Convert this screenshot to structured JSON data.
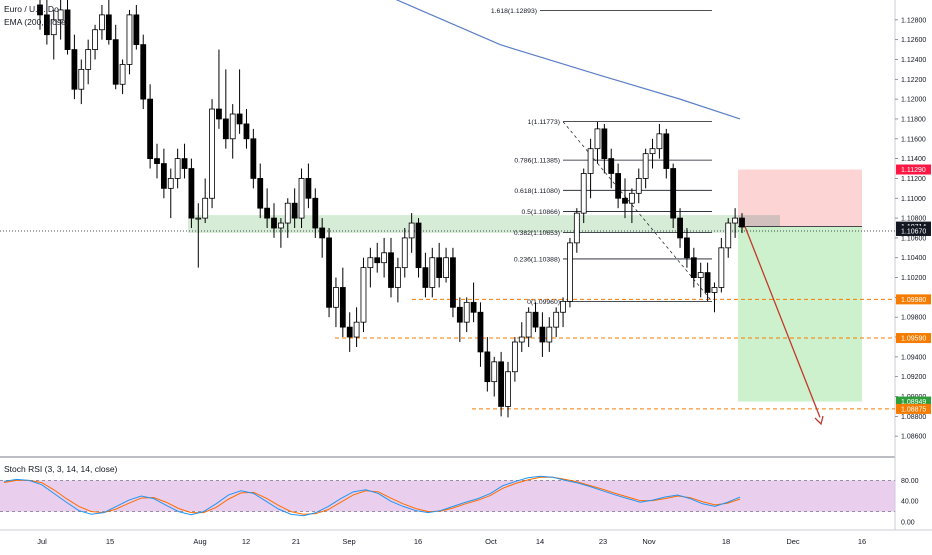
{
  "symbol_title": "Euro / U.S. Dollar, 1D, OANDA",
  "main_legend_title": "Euro / U.S. Do",
  "ema_label": "EMA (200, close)",
  "stoch_label": "Stoch RSI (3, 3, 14, 14, close)",
  "colors": {
    "up_candle": "#ffffff",
    "down_candle": "#000000",
    "ema_line": "#5b7fc7",
    "stoch_k": "#2196f3",
    "stoch_d": "#ff6d00",
    "stoch_band": "#e1bee7",
    "zone_green": "#c8e6c9",
    "target_zone": "#c8f0c8",
    "stop_zone": "#fcc9c9",
    "red_tag": "#ff1744",
    "black_tag": "#131722",
    "green_tag": "#2e9e3a",
    "orange_tag": "#f57c00",
    "arrow": "#c0392b"
  },
  "chart_data": [
    {
      "type": "candlestick",
      "title": "",
      "timeframe": "1D",
      "ylim": [
        1.084,
        1.13
      ],
      "y_ticks": [
        "1.12800",
        "1.12600",
        "1.12400",
        "1.12200",
        "1.12000",
        "1.11800",
        "1.11600",
        "1.11400",
        "1.11200",
        "1.11000",
        "1.10800",
        "1.10600",
        "1.10400",
        "1.10200",
        "1.10000",
        "1.09800",
        "1.09600",
        "1.09400",
        "1.09200",
        "1.09000",
        "1.08800",
        "1.08600"
      ],
      "x_labels": [
        "Jul",
        "15",
        "Aug",
        "12",
        "21",
        "Sep",
        "16",
        "Oct",
        "14",
        "23",
        "Nov",
        "18",
        "Dec",
        "16"
      ],
      "ohlc": [
        [
          1.1295,
          1.131,
          1.127,
          1.1285
        ],
        [
          1.1285,
          1.13,
          1.1255,
          1.1265
        ],
        [
          1.1265,
          1.129,
          1.124,
          1.128
        ],
        [
          1.128,
          1.13,
          1.126,
          1.129
        ],
        [
          1.129,
          1.1305,
          1.1245,
          1.125
        ],
        [
          1.125,
          1.1265,
          1.12,
          1.121
        ],
        [
          1.121,
          1.124,
          1.1195,
          1.123
        ],
        [
          1.123,
          1.126,
          1.1215,
          1.125
        ],
        [
          1.125,
          1.1275,
          1.124,
          1.127
        ],
        [
          1.127,
          1.1295,
          1.126,
          1.1285
        ],
        [
          1.1285,
          1.13,
          1.1255,
          1.126
        ],
        [
          1.126,
          1.1275,
          1.121,
          1.1215
        ],
        [
          1.1215,
          1.124,
          1.1205,
          1.1235
        ],
        [
          1.1235,
          1.129,
          1.1225,
          1.1285
        ],
        [
          1.1285,
          1.1295,
          1.125,
          1.1255
        ],
        [
          1.1255,
          1.1265,
          1.119,
          1.12
        ],
        [
          1.12,
          1.1215,
          1.113,
          1.114
        ],
        [
          1.114,
          1.1155,
          1.112,
          1.1135
        ],
        [
          1.1135,
          1.115,
          1.11,
          1.111
        ],
        [
          1.111,
          1.113,
          1.108,
          1.112
        ],
        [
          1.112,
          1.115,
          1.111,
          1.114
        ],
        [
          1.114,
          1.1155,
          1.112,
          1.113
        ],
        [
          1.113,
          1.114,
          1.107,
          1.108
        ],
        [
          1.108,
          1.1095,
          1.103,
          1.108
        ],
        [
          1.108,
          1.112,
          1.1075,
          1.11
        ],
        [
          1.11,
          1.12,
          1.109,
          1.119
        ],
        [
          1.119,
          1.125,
          1.117,
          1.118
        ],
        [
          1.118,
          1.123,
          1.115,
          1.116
        ],
        [
          1.116,
          1.1195,
          1.114,
          1.1185
        ],
        [
          1.1185,
          1.123,
          1.1165,
          1.1175
        ],
        [
          1.1175,
          1.119,
          1.115,
          1.116
        ],
        [
          1.116,
          1.117,
          1.111,
          1.112
        ],
        [
          1.112,
          1.1135,
          1.108,
          1.109
        ],
        [
          1.109,
          1.111,
          1.107,
          1.108
        ],
        [
          1.108,
          1.1095,
          1.106,
          1.107
        ],
        [
          1.107,
          1.108,
          1.105,
          1.1075
        ],
        [
          1.1075,
          1.11,
          1.106,
          1.1095
        ],
        [
          1.1095,
          1.111,
          1.107,
          1.108
        ],
        [
          1.108,
          1.113,
          1.107,
          1.112
        ],
        [
          1.112,
          1.1135,
          1.109,
          1.11
        ],
        [
          1.11,
          1.111,
          1.106,
          1.107
        ],
        [
          1.107,
          1.108,
          1.104,
          1.106
        ],
        [
          1.106,
          1.107,
          1.098,
          1.099
        ],
        [
          1.099,
          1.102,
          1.097,
          1.101
        ],
        [
          1.101,
          1.103,
          1.096,
          1.097
        ],
        [
          1.097,
          1.0985,
          1.0945,
          1.096
        ],
        [
          1.096,
          1.099,
          1.095,
          1.0975
        ],
        [
          1.0975,
          1.104,
          1.0965,
          1.103
        ],
        [
          1.103,
          1.105,
          1.101,
          1.104
        ],
        [
          1.104,
          1.1055,
          1.1025,
          1.1035
        ],
        [
          1.1035,
          1.106,
          1.102,
          1.1045
        ],
        [
          1.1045,
          1.106,
          1.1,
          1.101
        ],
        [
          1.101,
          1.104,
          1.0995,
          1.103
        ],
        [
          1.103,
          1.107,
          1.102,
          1.106
        ],
        [
          1.106,
          1.1085,
          1.1045,
          1.1075
        ],
        [
          1.1075,
          1.108,
          1.102,
          1.103
        ],
        [
          1.103,
          1.1045,
          1.1,
          1.101
        ],
        [
          1.101,
          1.105,
          1.1,
          1.104
        ],
        [
          1.104,
          1.1055,
          1.101,
          1.102
        ],
        [
          1.102,
          1.105,
          1.1015,
          1.104
        ],
        [
          1.104,
          1.105,
          1.098,
          1.099
        ],
        [
          1.099,
          1.1,
          1.0955,
          1.0975
        ],
        [
          1.0975,
          1.1,
          1.0965,
          1.0995
        ],
        [
          1.0995,
          1.1015,
          1.0975,
          1.0985
        ],
        [
          1.0985,
          1.0995,
          1.093,
          1.0945
        ],
        [
          1.0945,
          1.096,
          1.0905,
          1.0915
        ],
        [
          1.0915,
          1.094,
          1.09,
          1.0935
        ],
        [
          1.0935,
          1.0945,
          1.088,
          1.089
        ],
        [
          1.089,
          1.0935,
          1.0879,
          1.0925
        ],
        [
          1.0925,
          1.096,
          1.0915,
          1.0955
        ],
        [
          1.0955,
          1.0975,
          1.0945,
          1.096
        ],
        [
          1.096,
          1.099,
          1.095,
          1.0985
        ],
        [
          1.0985,
          1.0995,
          1.0965,
          1.097
        ],
        [
          1.097,
          1.0985,
          1.094,
          1.0955
        ],
        [
          1.0955,
          1.098,
          1.0945,
          1.097
        ],
        [
          1.097,
          1.099,
          1.096,
          1.0985
        ],
        [
          1.0985,
          1.1,
          1.097,
          1.0996
        ],
        [
          1.0996,
          1.106,
          1.099,
          1.1055
        ],
        [
          1.1055,
          1.109,
          1.1045,
          1.1085
        ],
        [
          1.1085,
          1.113,
          1.1075,
          1.1125
        ],
        [
          1.1125,
          1.116,
          1.11,
          1.115
        ],
        [
          1.115,
          1.1177,
          1.1135,
          1.117
        ],
        [
          1.117,
          1.1175,
          1.1125,
          1.114
        ],
        [
          1.114,
          1.115,
          1.111,
          1.1125
        ],
        [
          1.1125,
          1.1135,
          1.109,
          1.11
        ],
        [
          1.11,
          1.112,
          1.108,
          1.1095
        ],
        [
          1.1095,
          1.111,
          1.1075,
          1.1105
        ],
        [
          1.1105,
          1.113,
          1.1095,
          1.112
        ],
        [
          1.112,
          1.115,
          1.111,
          1.1145
        ],
        [
          1.1145,
          1.116,
          1.113,
          1.115
        ],
        [
          1.115,
          1.1175,
          1.114,
          1.1165
        ],
        [
          1.1165,
          1.117,
          1.112,
          1.113
        ],
        [
          1.113,
          1.1135,
          1.107,
          1.108
        ],
        [
          1.108,
          1.109,
          1.105,
          1.106
        ],
        [
          1.106,
          1.107,
          1.103,
          1.104
        ],
        [
          1.104,
          1.105,
          1.101,
          1.102
        ],
        [
          1.102,
          1.1035,
          1.1,
          1.1025
        ],
        [
          1.1025,
          1.1035,
          1.0996,
          1.1005
        ],
        [
          1.1005,
          1.1015,
          1.0985,
          1.101
        ],
        [
          1.101,
          1.106,
          1.1005,
          1.105
        ],
        [
          1.105,
          1.108,
          1.104,
          1.1075
        ],
        [
          1.1075,
          1.109,
          1.106,
          1.108
        ],
        [
          1.108,
          1.1085,
          1.1065,
          1.1071
        ]
      ],
      "ema200": [
        1.1325,
        1.129,
        1.1255,
        1.1224,
        1.12,
        1.118
      ],
      "fibonacci": [
        {
          "label": "1.618(1.12893)",
          "value": 1.12893
        },
        {
          "label": "1(1.11773)",
          "value": 1.11773
        },
        {
          "label": "0.786(1.11385)",
          "value": 1.11385
        },
        {
          "label": "0.618(1.11080)",
          "value": 1.1108
        },
        {
          "label": "0.5(1.10866)",
          "value": 1.10866
        },
        {
          "label": "0.382(1.10653)",
          "value": 1.10653
        },
        {
          "label": "0.236(1.10388)",
          "value": 1.10388
        },
        {
          "label": "0(1.09960)",
          "value": 1.0996
        }
      ],
      "price_tags": [
        {
          "label": "1.11290",
          "value": 1.1129,
          "color": "red"
        },
        {
          "label": "1.10714",
          "value": 1.10714,
          "color": "black"
        },
        {
          "label": "1.10670",
          "value": 1.1067,
          "color": "black"
        },
        {
          "label": "1.09980",
          "value": 1.0998,
          "color": "orange"
        },
        {
          "label": "1.09590",
          "value": 1.0959,
          "color": "orange"
        },
        {
          "label": "1.08949",
          "value": 1.08949,
          "color": "green"
        },
        {
          "label": "1.08875",
          "value": 1.08875,
          "color": "orange"
        }
      ],
      "support_zone": [
        1.1065,
        1.1083
      ],
      "short_position": {
        "entry": 1.10714,
        "stop": 1.1129,
        "target": 1.08949
      }
    },
    {
      "type": "line",
      "title": "",
      "ylim": [
        0,
        100
      ],
      "y_ticks": [
        "80.00",
        "40.00",
        "0.00"
      ],
      "band": [
        20,
        80
      ],
      "series": [
        {
          "values": [
            78,
            82,
            80,
            72,
            55,
            38,
            22,
            15,
            18,
            30,
            42,
            50,
            45,
            32,
            20,
            14,
            20,
            35,
            52,
            60,
            55,
            40,
            25,
            15,
            12,
            18,
            30,
            45,
            58,
            62,
            55,
            40,
            30,
            22,
            18,
            22,
            30,
            38,
            45,
            55,
            70,
            78,
            85,
            88,
            86,
            80,
            75,
            68,
            60,
            52,
            45,
            38,
            42,
            48,
            52,
            45,
            35,
            30,
            38,
            48
          ]
        },
        {
          "values": [
            76,
            80,
            80,
            76,
            62,
            45,
            30,
            20,
            18,
            25,
            36,
            46,
            47,
            38,
            26,
            18,
            18,
            28,
            44,
            56,
            57,
            46,
            32,
            20,
            15,
            16,
            24,
            38,
            52,
            60,
            58,
            46,
            35,
            26,
            20,
            21,
            27,
            35,
            42,
            51,
            65,
            74,
            81,
            86,
            86,
            82,
            77,
            70,
            63,
            55,
            48,
            41,
            41,
            45,
            50,
            47,
            39,
            33,
            36,
            44
          ]
        }
      ]
    }
  ]
}
